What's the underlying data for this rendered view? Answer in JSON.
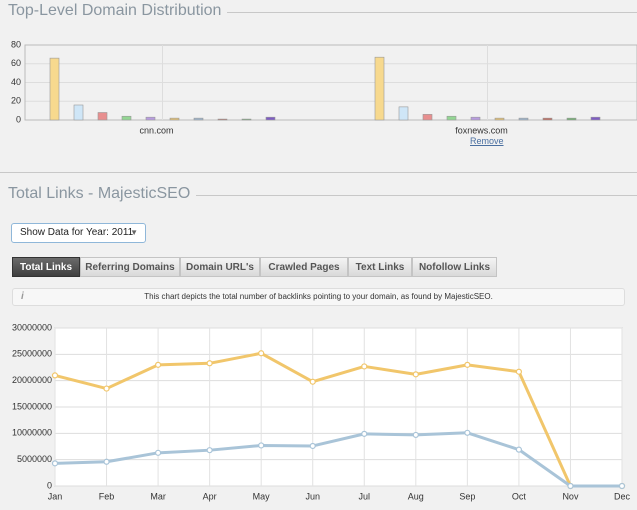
{
  "sections": [
    {
      "title": "Top-Level Domain Distribution"
    },
    {
      "title": "Total Links - MajesticSEO"
    }
  ],
  "remove_link": "Remove",
  "year_select": "Show Data for Year: 2011",
  "tabs": [
    "Total Links",
    "Referring Domains",
    "Domain URL's",
    "Crawled Pages",
    "Text Links",
    "Nofollow Links"
  ],
  "info_icon": "i",
  "info_text": "This chart depicts the total number of backlinks pointing to your domain, as found by MajesticSEO.",
  "chart_data": [
    {
      "type": "bar",
      "categories": [
        "cnn.com",
        "foxnews.com"
      ],
      "series": [
        {
          "color": "#f7d98e",
          "values": [
            66,
            67
          ]
        },
        {
          "color": "#cfe6f7",
          "values": [
            16,
            14
          ]
        },
        {
          "color": "#e88f8f",
          "values": [
            8,
            6
          ]
        },
        {
          "color": "#93d693",
          "values": [
            4,
            4
          ]
        },
        {
          "color": "#b89ce0",
          "values": [
            3,
            3
          ]
        },
        {
          "color": "#e6c374",
          "values": [
            2,
            2
          ]
        },
        {
          "color": "#9fb6cf",
          "values": [
            2,
            2
          ]
        },
        {
          "color": "#c06b5e",
          "values": [
            1,
            2
          ]
        },
        {
          "color": "#72b072",
          "values": [
            1,
            2
          ]
        },
        {
          "color": "#7e5cc4",
          "values": [
            3,
            3
          ]
        }
      ],
      "ylim": [
        0,
        80
      ],
      "yticks": [
        0,
        20,
        40,
        60,
        80
      ],
      "grid": true
    },
    {
      "type": "line",
      "categories": [
        "Jan",
        "Feb",
        "Mar",
        "Apr",
        "May",
        "Jun",
        "Jul",
        "Aug",
        "Sep",
        "Oct",
        "Nov",
        "Dec"
      ],
      "series": [
        {
          "color": "#f1c66b",
          "values": [
            21000000,
            18500000,
            23000000,
            23300000,
            25200000,
            19800000,
            22700000,
            21200000,
            23000000,
            21700000,
            0,
            0
          ]
        },
        {
          "color": "#a9c4d8",
          "values": [
            4300000,
            4600000,
            6300000,
            6800000,
            7700000,
            7600000,
            9900000,
            9700000,
            10100000,
            6900000,
            0,
            0
          ]
        }
      ],
      "ylim": [
        0,
        30000000
      ],
      "yticks": [
        0,
        5000000,
        10000000,
        15000000,
        20000000,
        25000000,
        30000000
      ],
      "grid": true
    }
  ]
}
